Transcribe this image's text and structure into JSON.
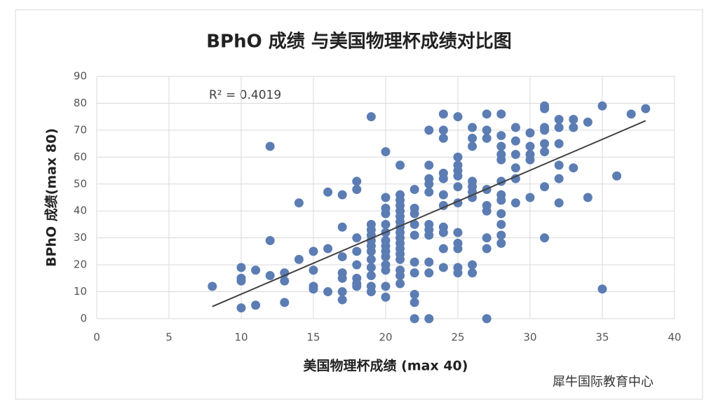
{
  "chart_data": {
    "type": "scatter",
    "title": "BPhO 成绩 与美国物理杯成绩对比图",
    "x_label": "美国物理杯成绩 (max 40)",
    "y_label": "BPhO 成绩(max 80)",
    "annotation": "R² = 0.4019",
    "watermark": "犀牛国际教育中心",
    "xlim": [
      0,
      40
    ],
    "xticks": [
      0,
      5,
      10,
      15,
      20,
      25,
      30,
      35,
      40
    ],
    "ylim": [
      0,
      90
    ],
    "yticks": [
      0,
      10,
      20,
      30,
      40,
      50,
      60,
      70,
      80,
      90
    ],
    "grid": true,
    "series": [
      {
        "color": "#5b7db3",
        "x": [
          8,
          10,
          10,
          10,
          10,
          11,
          11,
          12,
          12,
          12,
          13,
          13,
          13,
          14,
          14,
          15,
          15,
          15,
          15,
          16,
          16,
          16,
          17,
          17,
          17,
          17,
          17,
          17,
          17,
          18,
          18,
          18,
          18,
          18,
          18,
          18,
          18,
          19,
          19,
          19,
          19,
          19,
          19,
          19,
          19,
          19,
          19,
          19,
          19,
          20,
          20,
          20,
          20,
          20,
          20,
          20,
          20,
          20,
          20,
          20,
          20,
          20,
          20,
          21,
          21,
          21,
          21,
          21,
          21,
          21,
          21,
          21,
          21,
          21,
          21,
          21,
          21,
          21,
          21,
          21,
          22,
          22,
          22,
          22,
          22,
          22,
          22,
          22,
          22,
          22,
          23,
          23,
          23,
          23,
          23,
          23,
          23,
          23,
          23,
          23,
          23,
          24,
          24,
          24,
          24,
          24,
          24,
          24,
          24,
          24,
          24,
          24,
          25,
          25,
          25,
          25,
          25,
          25,
          25,
          25,
          25,
          25,
          25,
          25,
          26,
          26,
          26,
          26,
          26,
          26,
          26,
          26,
          26,
          27,
          27,
          27,
          27,
          27,
          27,
          27,
          27,
          27,
          28,
          28,
          28,
          28,
          28,
          28,
          28,
          28,
          28,
          28,
          28,
          28,
          29,
          29,
          29,
          29,
          29,
          29,
          30,
          30,
          30,
          30,
          30,
          31,
          31,
          31,
          31,
          31,
          31,
          31,
          31,
          32,
          32,
          32,
          32,
          32,
          32,
          33,
          33,
          33,
          34,
          34,
          35,
          35,
          36,
          37,
          38
        ],
        "values": [
          12,
          19,
          15,
          14,
          4,
          18,
          5,
          64,
          29,
          16,
          17,
          14,
          6,
          43,
          22,
          25,
          18,
          12,
          11,
          47,
          26,
          10,
          46,
          34,
          23,
          17,
          15,
          10,
          7,
          51,
          48,
          30,
          25,
          20,
          15,
          13,
          12,
          75,
          35,
          33,
          31,
          29,
          27,
          25,
          22,
          19,
          16,
          12,
          10,
          62,
          45,
          41,
          39,
          35,
          32,
          29,
          27,
          25,
          23,
          20,
          18,
          12,
          8,
          57,
          46,
          44,
          42,
          40,
          38,
          36,
          34,
          32,
          30,
          28,
          26,
          24,
          22,
          18,
          16,
          13,
          48,
          41,
          39,
          35,
          31,
          21,
          17,
          9,
          6,
          0,
          70,
          57,
          52,
          50,
          47,
          35,
          33,
          31,
          21,
          17,
          0,
          76,
          70,
          67,
          54,
          52,
          46,
          42,
          34,
          32,
          26,
          19,
          75,
          60,
          57,
          55,
          53,
          49,
          43,
          32,
          28,
          26,
          19,
          17,
          71,
          67,
          64,
          51,
          49,
          47,
          45,
          20,
          17,
          76,
          70,
          67,
          48,
          42,
          40,
          30,
          26,
          0,
          76,
          68,
          64,
          61,
          59,
          51,
          46,
          44,
          39,
          35,
          31,
          28,
          71,
          66,
          61,
          56,
          52,
          43,
          69,
          64,
          61,
          59,
          45,
          79,
          78,
          71,
          70,
          65,
          62,
          49,
          30,
          74,
          71,
          65,
          57,
          52,
          43,
          74,
          71,
          56,
          73,
          45,
          79,
          11,
          53,
          76,
          78
        ]
      }
    ],
    "trendline": {
      "color": "#404040",
      "x": [
        8,
        38
      ],
      "values": [
        4.5,
        73.5
      ]
    }
  }
}
